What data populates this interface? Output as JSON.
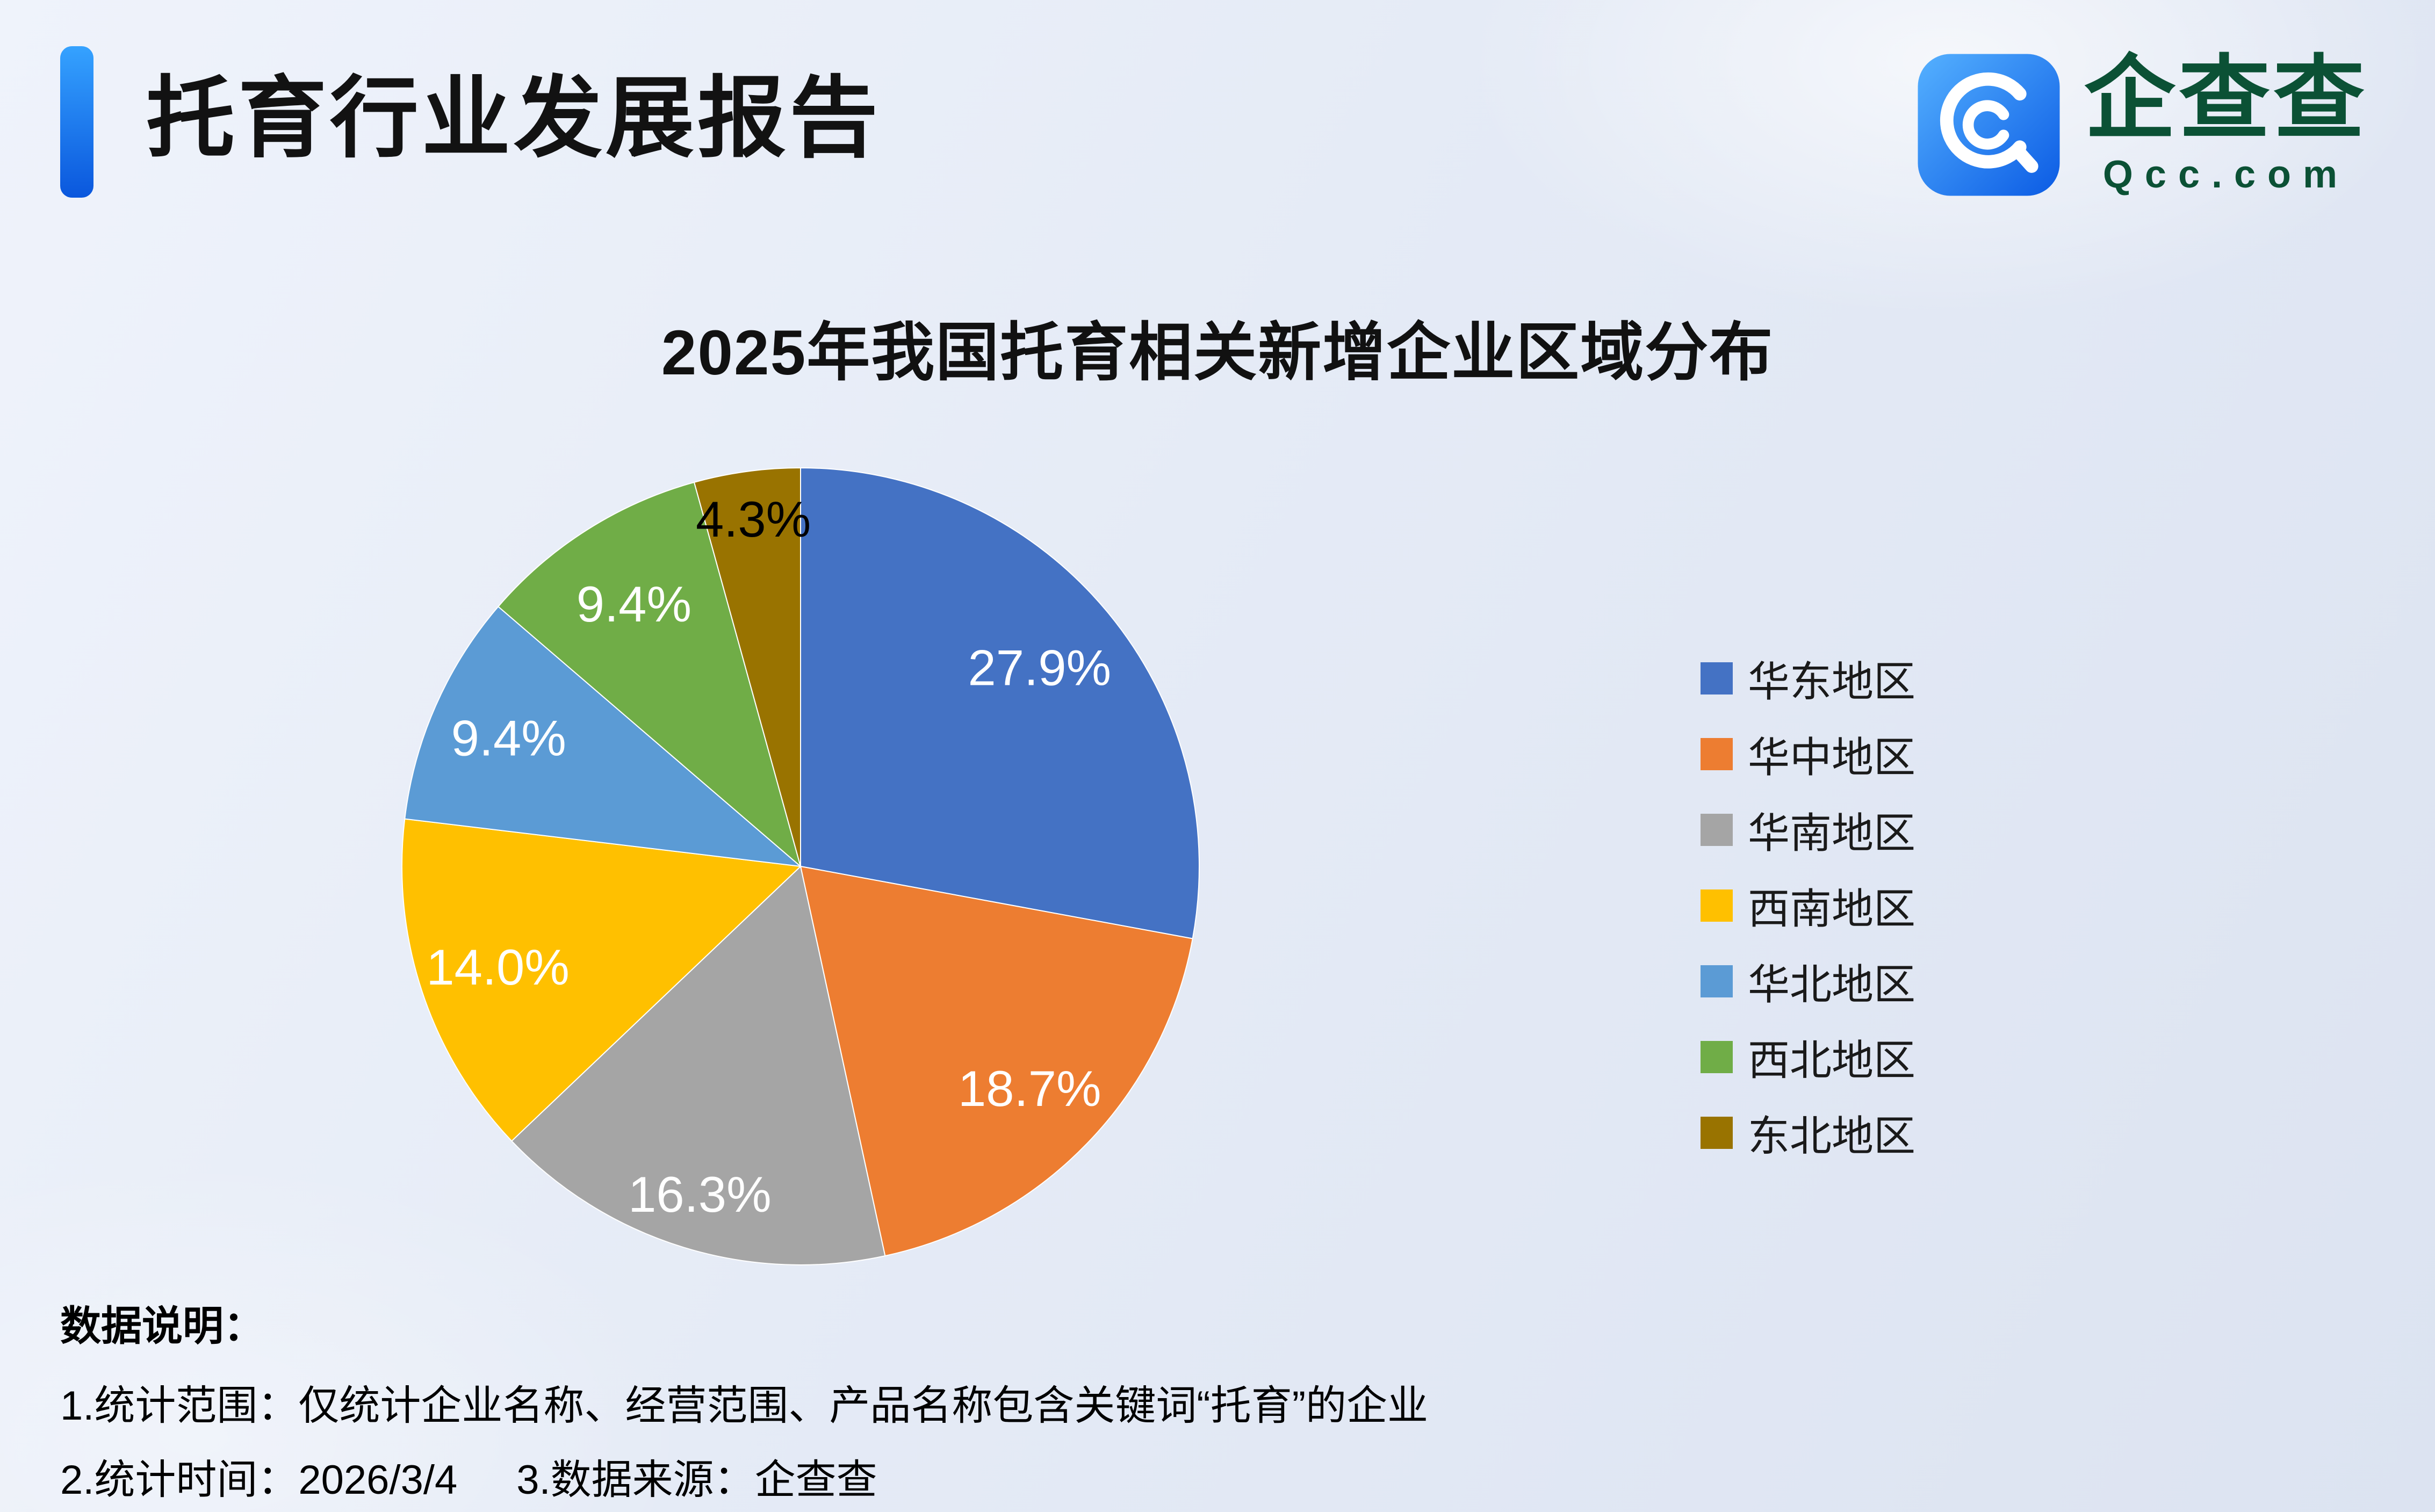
{
  "header": {
    "title": "托育行业发展报告",
    "logo": {
      "icon": "qcc-magnifier-icon",
      "brand": "企查查",
      "domain": "Qcc.com",
      "brand_color": "#0B5135",
      "icon_gradient": [
        "#55B1FF",
        "#0B5BE4"
      ]
    },
    "accent_gradient": [
      "#35A2FF",
      "#0A57DD"
    ]
  },
  "chart_data": {
    "type": "pie",
    "title": "2025年我国托育相关新增企业区域分布",
    "categories": [
      "华东地区",
      "华中地区",
      "华南地区",
      "西南地区",
      "华北地区",
      "西北地区",
      "东北地区"
    ],
    "values": [
      27.9,
      18.7,
      16.3,
      14.0,
      9.4,
      9.4,
      4.3
    ],
    "labels": [
      "27.9%",
      "18.7%",
      "16.3%",
      "14.0%",
      "9.4%",
      "9.4%",
      "4.3%"
    ],
    "colors": [
      "#4472C4",
      "#ED7D31",
      "#A5A5A5",
      "#FFC000",
      "#5B9BD5",
      "#70AD47",
      "#997300"
    ],
    "label_colors": [
      "#FFFFFF",
      "#FFFFFF",
      "#FFFFFF",
      "#FFFFFF",
      "#FFFFFF",
      "#FFFFFF",
      "#000000"
    ],
    "label_radius": [
      0.78,
      0.8,
      0.86,
      0.8,
      0.8,
      0.78,
      0.88
    ],
    "start_angle_deg": 0,
    "direction": "clockwise",
    "legend_position": "right",
    "value_suffix": "%"
  },
  "footnotes": {
    "heading": "数据说明：",
    "line1": "1.统计范围：仅统计企业名称、经营范围、产品名称包含关键词“托育”的企业",
    "line2_time": "2.统计时间：2026/3/4",
    "line2_source": "3.数据来源：企查查"
  }
}
